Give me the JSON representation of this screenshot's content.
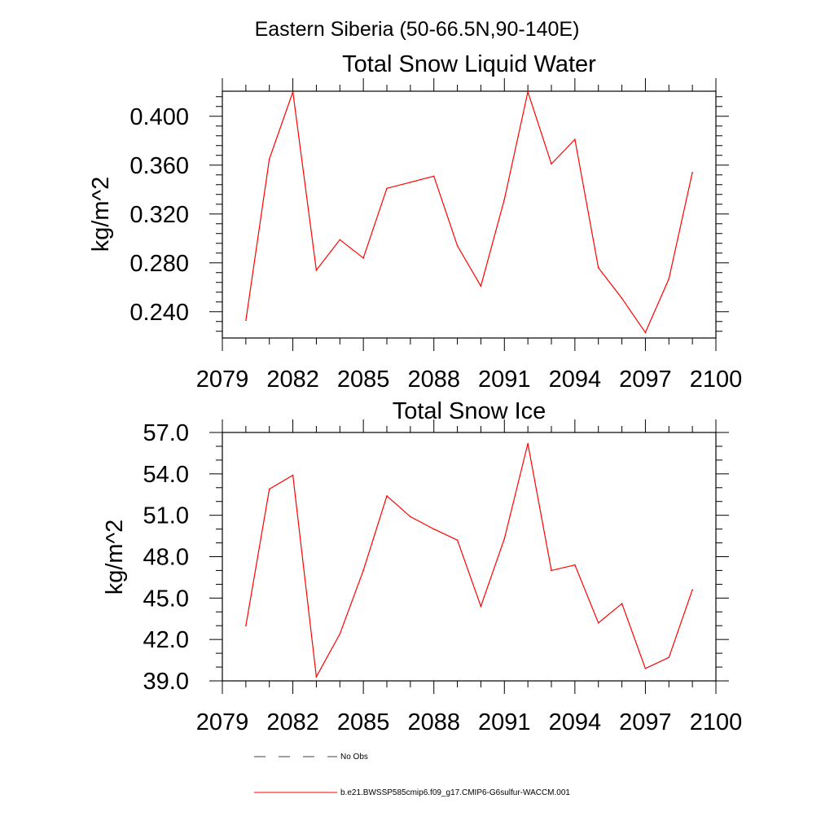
{
  "figure_title": "Eastern Siberia (50-66.5N,90-140E)",
  "legend": {
    "obs_label": "No Obs",
    "model_label": "b.e21.BWSSP585cmip6.f09_g17.CMIP6-G6sulfur-WACCM.001",
    "model_color": "#ff0000",
    "obs_color": "#000000"
  },
  "chart_data": [
    {
      "type": "line",
      "title": "Total Snow Liquid Water",
      "xlabel": "",
      "ylabel": "kg/m^2",
      "xlim": [
        2079,
        2100
      ],
      "ylim": [
        0.2185,
        0.4205
      ],
      "x_ticks": [
        2079,
        2082,
        2085,
        2088,
        2091,
        2094,
        2097,
        2100
      ],
      "y_ticks": [
        "0.240",
        "0.280",
        "0.320",
        "0.360",
        "0.400"
      ],
      "grid": false,
      "series": [
        {
          "name": "b.e21.BWSSP585cmip6.f09_g17.CMIP6-G6sulfur-WACCM.001",
          "color": "#ff0000",
          "x": [
            2080,
            2081,
            2082,
            2083,
            2084,
            2085,
            2086,
            2087,
            2088,
            2089,
            2090,
            2091,
            2092,
            2093,
            2094,
            2095,
            2096,
            2097,
            2098,
            2099
          ],
          "values": [
            0.233,
            0.365,
            0.42,
            0.274,
            0.299,
            0.284,
            0.341,
            0.346,
            0.351,
            0.294,
            0.261,
            0.332,
            0.42,
            0.361,
            0.381,
            0.276,
            0.251,
            0.223,
            0.267,
            0.354
          ]
        }
      ]
    },
    {
      "type": "line",
      "title": "Total Snow Ice",
      "xlabel": "",
      "ylabel": "kg/m^2",
      "xlim": [
        2079,
        2100
      ],
      "ylim": [
        39.0,
        57.0
      ],
      "x_ticks": [
        2079,
        2082,
        2085,
        2088,
        2091,
        2094,
        2097,
        2100
      ],
      "y_ticks": [
        "39.0",
        "42.0",
        "45.0",
        "48.0",
        "51.0",
        "54.0",
        "57.0"
      ],
      "grid": false,
      "series": [
        {
          "name": "b.e21.BWSSP585cmip6.f09_g17.CMIP6-G6sulfur-WACCM.001",
          "color": "#ff0000",
          "x": [
            2080,
            2081,
            2082,
            2083,
            2084,
            2085,
            2086,
            2087,
            2088,
            2089,
            2090,
            2091,
            2092,
            2093,
            2094,
            2095,
            2096,
            2097,
            2098,
            2099
          ],
          "values": [
            43.0,
            52.9,
            53.9,
            39.3,
            42.4,
            47.0,
            52.4,
            50.9,
            50.0,
            49.2,
            44.4,
            49.3,
            56.2,
            47.0,
            47.4,
            43.2,
            44.6,
            39.9,
            40.7,
            45.6
          ]
        }
      ]
    }
  ]
}
